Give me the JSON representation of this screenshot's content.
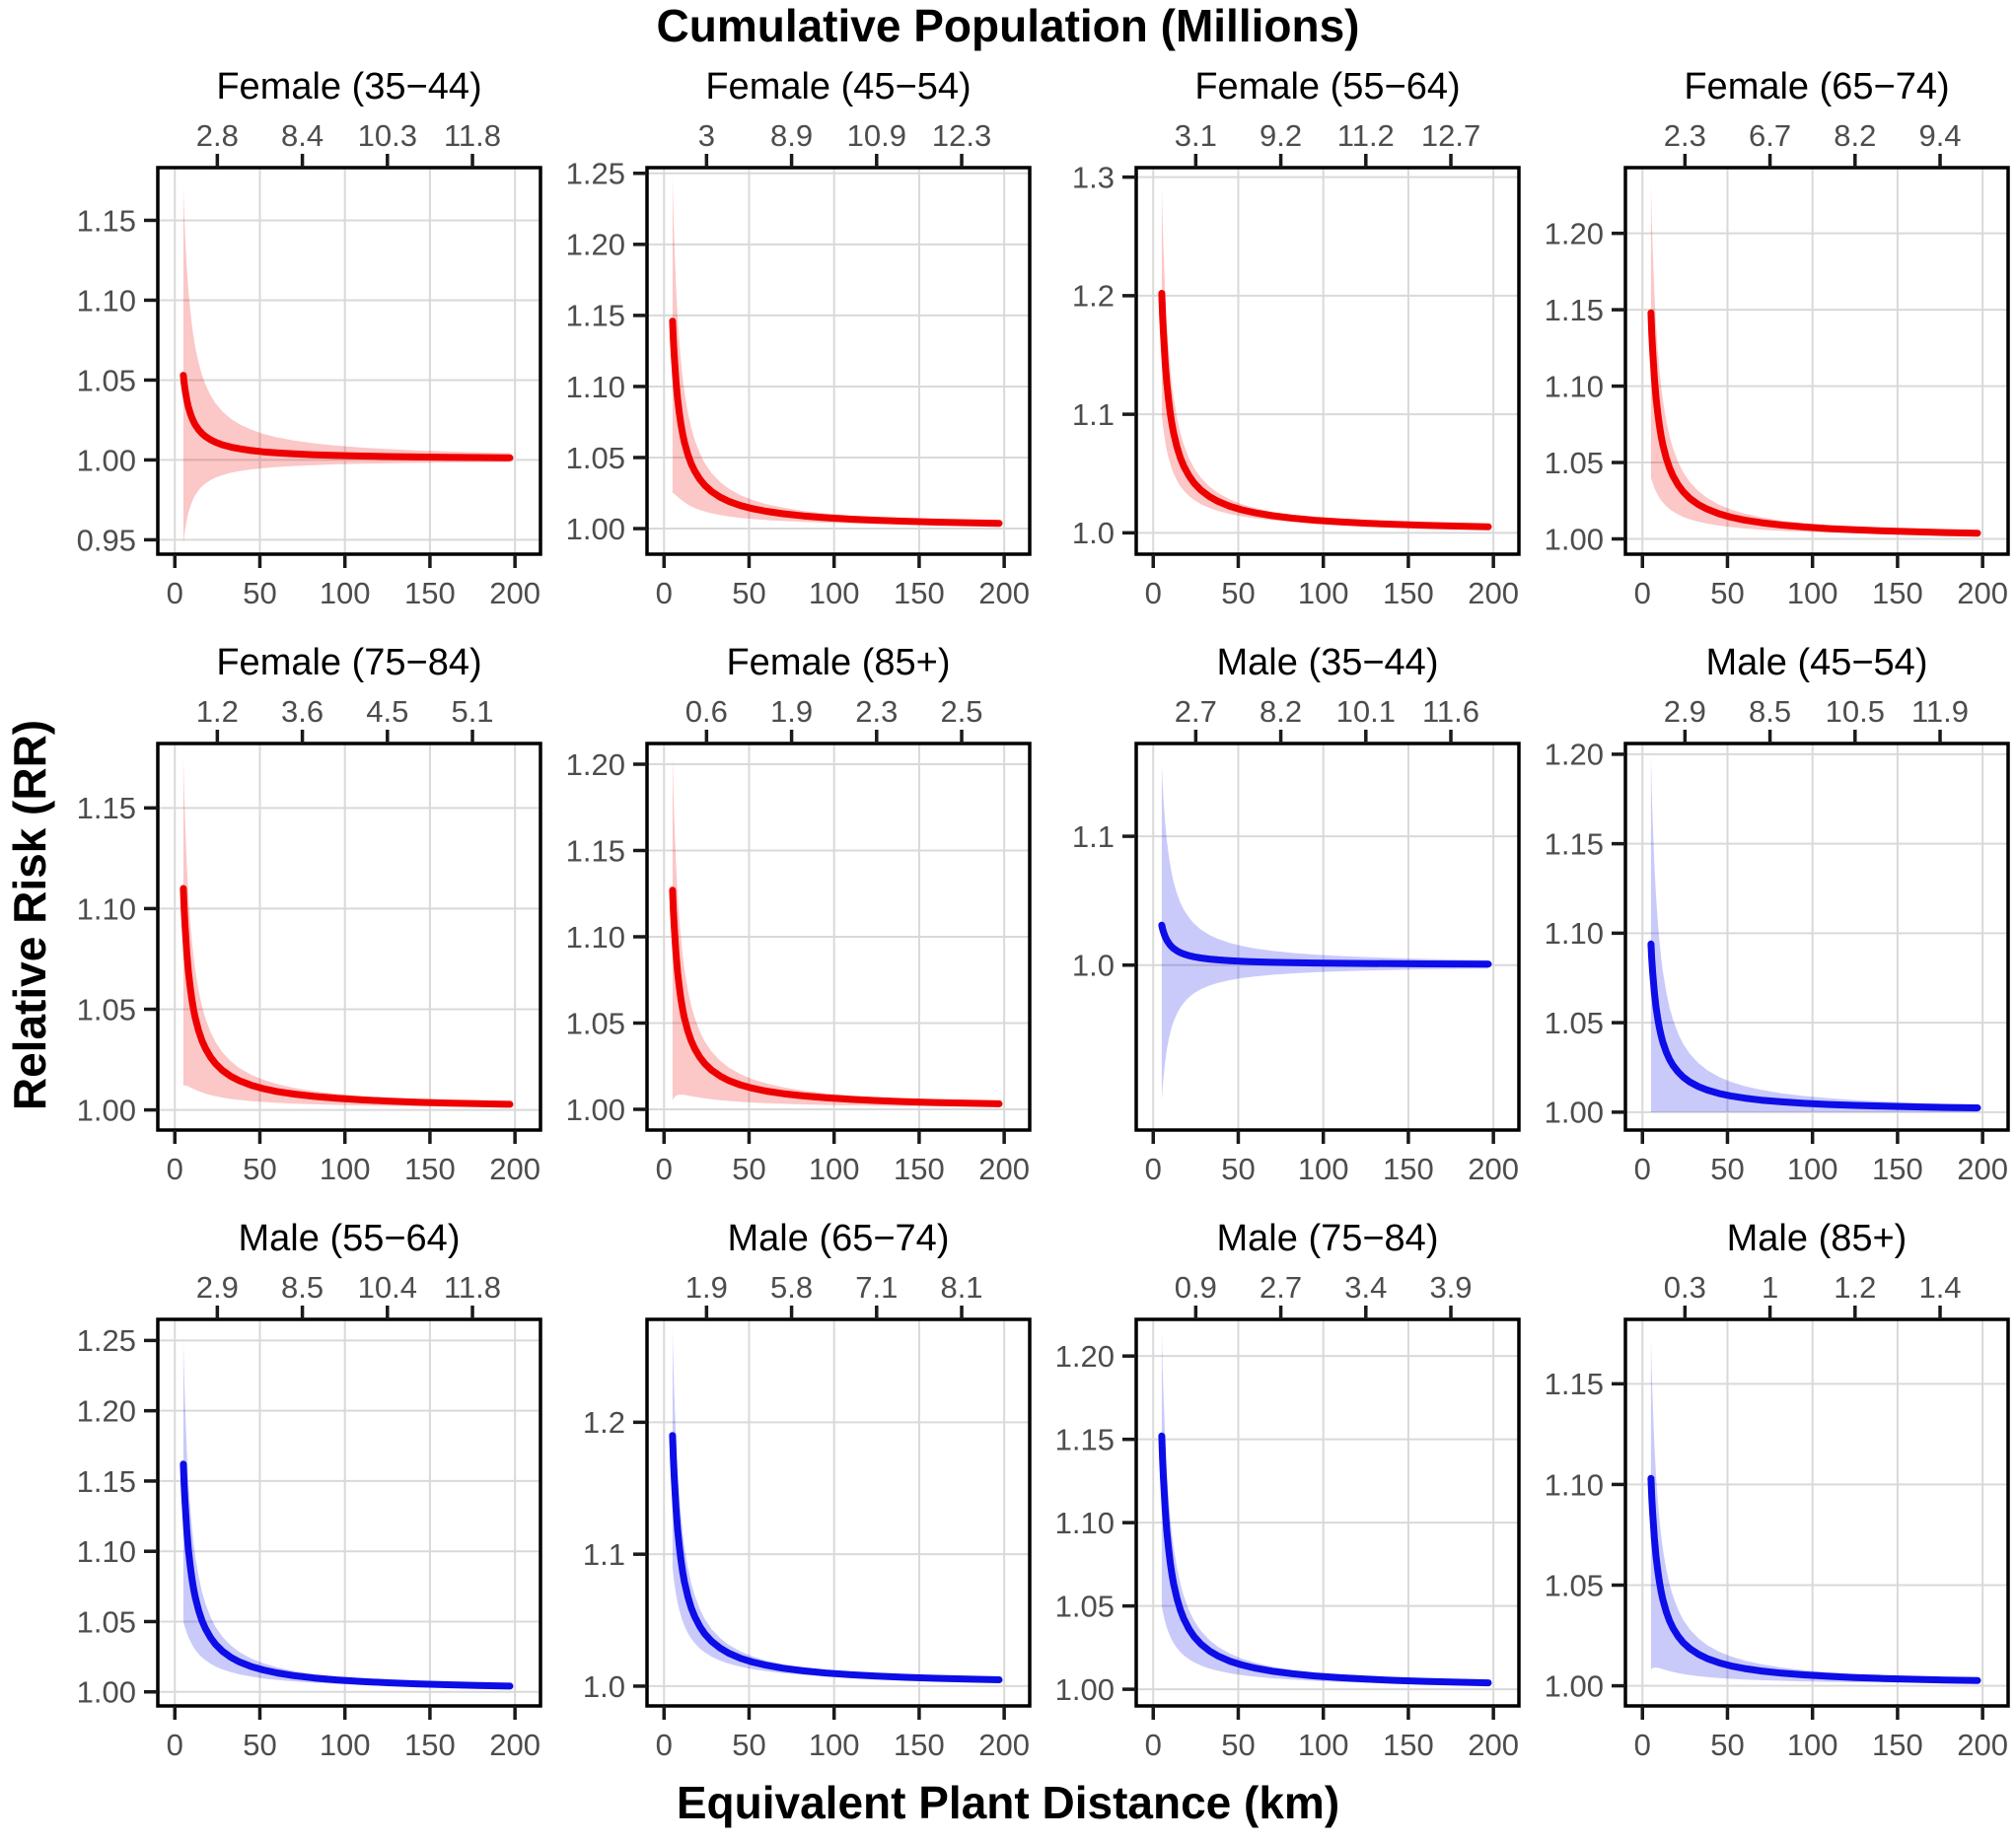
{
  "figure": {
    "top_axis_title": "Cumulative Population (Millions)",
    "x_axis_title": "Equivalent Plant Distance (km)",
    "y_axis_title": "Relative Risk (RR)"
  },
  "chart_data": {
    "type": "line",
    "title": "Cumulative Population (Millions)",
    "xlabel": "Equivalent Plant Distance (km)",
    "ylabel": "Relative Risk (RR)",
    "layout": {
      "rows": 3,
      "cols": 4,
      "grid": "major-only",
      "legend": "none",
      "panel_border": "black"
    },
    "x_ticks": [
      0,
      50,
      100,
      150,
      200
    ],
    "x_tick_labels": [
      "0",
      "50",
      "100",
      "150",
      "200"
    ],
    "x_range": [
      -10,
      215
    ],
    "secondary_x_tick_positions_km": [
      25,
      75,
      125,
      175
    ],
    "curve_x_start_km": 5,
    "curve_x_end_km": 197,
    "colors": {
      "female_line": "#EE0000",
      "male_line": "#0D0DE8",
      "gridline": "#D9D9D9",
      "tick_text": "#4D4D4D",
      "axis": "#000000"
    },
    "facets": [
      {
        "title": "Female (35−44)",
        "group": "Female",
        "color": "#EE0000",
        "top_axis_labels": [
          "2.8",
          "8.4",
          "10.3",
          "11.8"
        ],
        "y_tick_values": [
          0.95,
          1.0,
          1.05,
          1.1,
          1.15
        ],
        "y_tick_labels": [
          "0.95",
          "1.00",
          "1.05",
          "1.10",
          "1.15"
        ],
        "y_range": [
          0.941,
          1.183
        ],
        "rr_at_5km": 1.053,
        "rr_at_200km": 1.001,
        "ci_upper_at_5km": 1.17,
        "ci_lower_at_5km": 0.947,
        "ci_narrowing_power": 1.0,
        "ci_lower_clipped_at_1": false
      },
      {
        "title": "Female (45−54)",
        "group": "Female",
        "color": "#EE0000",
        "top_axis_labels": [
          "3",
          "8.9",
          "10.9",
          "12.3"
        ],
        "y_tick_values": [
          1.0,
          1.05,
          1.1,
          1.15,
          1.2,
          1.25
        ],
        "y_tick_labels": [
          "1.00",
          "1.05",
          "1.10",
          "1.15",
          "1.20",
          "1.25"
        ],
        "y_range": [
          0.982,
          1.254
        ],
        "rr_at_5km": 1.146,
        "rr_at_200km": 1.003,
        "ci_upper_at_5km": 1.248,
        "ci_lower_at_5km": 1.025,
        "ci_narrowing_power": 1.2,
        "ci_lower_clipped_at_1": false
      },
      {
        "title": "Female (55−64)",
        "group": "Female",
        "color": "#EE0000",
        "top_axis_labels": [
          "3.1",
          "9.2",
          "11.2",
          "12.7"
        ],
        "y_tick_values": [
          1.0,
          1.1,
          1.2,
          1.3
        ],
        "y_tick_labels": [
          "1.0",
          "1.1",
          "1.2",
          "1.3"
        ],
        "y_range": [
          0.982,
          1.308
        ],
        "rr_at_5km": 1.202,
        "rr_at_200km": 1.004,
        "ci_upper_at_5km": 1.292,
        "ci_lower_at_5km": 1.1,
        "ci_narrowing_power": 1.25,
        "ci_lower_clipped_at_1": false
      },
      {
        "title": "Female (65−74)",
        "group": "Female",
        "color": "#EE0000",
        "top_axis_labels": [
          "2.3",
          "6.7",
          "8.2",
          "9.4"
        ],
        "y_tick_values": [
          1.0,
          1.05,
          1.1,
          1.15,
          1.2
        ],
        "y_tick_labels": [
          "1.00",
          "1.05",
          "1.10",
          "1.15",
          "1.20"
        ],
        "y_range": [
          0.99,
          1.243
        ],
        "rr_at_5km": 1.148,
        "rr_at_200km": 1.003,
        "ci_upper_at_5km": 1.232,
        "ci_lower_at_5km": 1.04,
        "ci_narrowing_power": 1.2,
        "ci_lower_clipped_at_1": false
      },
      {
        "title": "Female (75−84)",
        "group": "Female",
        "color": "#EE0000",
        "top_axis_labels": [
          "1.2",
          "3.6",
          "4.5",
          "5.1"
        ],
        "y_tick_values": [
          1.0,
          1.05,
          1.1,
          1.15
        ],
        "y_tick_labels": [
          "1.00",
          "1.05",
          "1.10",
          "1.15"
        ],
        "y_range": [
          0.99,
          1.182
        ],
        "rr_at_5km": 1.11,
        "rr_at_200km": 1.002,
        "ci_upper_at_5km": 1.175,
        "ci_lower_at_5km": 1.012,
        "ci_narrowing_power": 1.15,
        "ci_lower_clipped_at_1": false
      },
      {
        "title": "Female (85+)",
        "group": "Female",
        "color": "#EE0000",
        "top_axis_labels": [
          "0.6",
          "1.9",
          "2.3",
          "2.5"
        ],
        "y_tick_values": [
          1.0,
          1.05,
          1.1,
          1.15,
          1.2
        ],
        "y_tick_labels": [
          "1.00",
          "1.05",
          "1.10",
          "1.15",
          "1.20"
        ],
        "y_range": [
          0.988,
          1.212
        ],
        "rr_at_5km": 1.127,
        "rr_at_200km": 1.002,
        "ci_upper_at_5km": 1.205,
        "ci_lower_at_5km": 1.005,
        "ci_narrowing_power": 1.15,
        "ci_lower_clipped_at_1": false
      },
      {
        "title": "Male (35−44)",
        "group": "Male",
        "color": "#0D0DE8",
        "top_axis_labels": [
          "2.7",
          "8.2",
          "10.1",
          "11.6"
        ],
        "y_tick_values": [
          1.0,
          1.1
        ],
        "y_tick_labels": [
          "1.0",
          "1.1"
        ],
        "y_range": [
          0.872,
          1.172
        ],
        "rr_at_5km": 1.031,
        "rr_at_200km": 1.001,
        "ci_upper_at_5km": 1.155,
        "ci_lower_at_5km": 0.895,
        "ci_narrowing_power": 1.0,
        "ci_lower_clipped_at_1": false
      },
      {
        "title": "Male (45−54)",
        "group": "Male",
        "color": "#0D0DE8",
        "top_axis_labels": [
          "2.9",
          "8.5",
          "10.5",
          "11.9"
        ],
        "y_tick_values": [
          1.0,
          1.05,
          1.1,
          1.15,
          1.2
        ],
        "y_tick_labels": [
          "1.00",
          "1.05",
          "1.10",
          "1.15",
          "1.20"
        ],
        "y_range": [
          0.99,
          1.206
        ],
        "rr_at_5km": 1.094,
        "rr_at_200km": 1.002,
        "ci_upper_at_5km": 1.198,
        "ci_lower_at_5km": 0.94,
        "ci_narrowing_power": 1.1,
        "ci_lower_clipped_at_1": true
      },
      {
        "title": "Male (55−64)",
        "group": "Male",
        "color": "#0D0DE8",
        "top_axis_labels": [
          "2.9",
          "8.5",
          "10.4",
          "11.8"
        ],
        "y_tick_values": [
          1.0,
          1.05,
          1.1,
          1.15,
          1.2,
          1.25
        ],
        "y_tick_labels": [
          "1.00",
          "1.05",
          "1.10",
          "1.15",
          "1.20",
          "1.25"
        ],
        "y_range": [
          0.99,
          1.265
        ],
        "rr_at_5km": 1.162,
        "rr_at_200km": 1.003,
        "ci_upper_at_5km": 1.25,
        "ci_lower_at_5km": 1.05,
        "ci_narrowing_power": 1.25,
        "ci_lower_clipped_at_1": false
      },
      {
        "title": "Male (65−74)",
        "group": "Male",
        "color": "#0D0DE8",
        "top_axis_labels": [
          "1.9",
          "5.8",
          "7.1",
          "8.1"
        ],
        "y_tick_values": [
          1.0,
          1.1,
          1.2
        ],
        "y_tick_labels": [
          "1.0",
          "1.1",
          "1.2"
        ],
        "y_range": [
          0.985,
          1.278
        ],
        "rr_at_5km": 1.19,
        "rr_at_200km": 1.004,
        "ci_upper_at_5km": 1.27,
        "ci_lower_at_5km": 1.09,
        "ci_narrowing_power": 1.25,
        "ci_lower_clipped_at_1": false
      },
      {
        "title": "Male (75−84)",
        "group": "Male",
        "color": "#0D0DE8",
        "top_axis_labels": [
          "0.9",
          "2.7",
          "3.4",
          "3.9"
        ],
        "y_tick_values": [
          1.0,
          1.05,
          1.1,
          1.15,
          1.2
        ],
        "y_tick_labels": [
          "1.00",
          "1.05",
          "1.10",
          "1.15",
          "1.20"
        ],
        "y_range": [
          0.99,
          1.222
        ],
        "rr_at_5km": 1.152,
        "rr_at_200km": 1.002,
        "ci_upper_at_5km": 1.215,
        "ci_lower_at_5km": 1.05,
        "ci_narrowing_power": 1.2,
        "ci_lower_clipped_at_1": false
      },
      {
        "title": "Male (85+)",
        "group": "Male",
        "color": "#0D0DE8",
        "top_axis_labels": [
          "0.3",
          "1",
          "1.2",
          "1.4"
        ],
        "y_tick_values": [
          1.0,
          1.05,
          1.1,
          1.15
        ],
        "y_tick_labels": [
          "1.00",
          "1.05",
          "1.10",
          "1.15"
        ],
        "y_range": [
          0.99,
          1.182
        ],
        "rr_at_5km": 1.103,
        "rr_at_200km": 1.002,
        "ci_upper_at_5km": 1.172,
        "ci_lower_at_5km": 1.008,
        "ci_narrowing_power": 1.15,
        "ci_lower_clipped_at_1": false
      }
    ]
  }
}
